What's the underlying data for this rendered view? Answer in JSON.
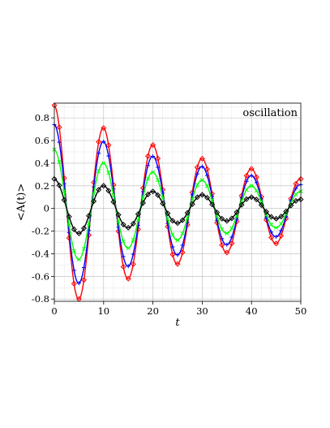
{
  "chart_data": {
    "type": "line",
    "legend": "oscillation",
    "legend_placement": "top-right",
    "xlabel": "t",
    "ylabel": "<A(t)>",
    "xlim": [
      0,
      50
    ],
    "ylim": [
      -0.82,
      0.93
    ],
    "grid": true,
    "x_ticks": [
      "0",
      "10",
      "20",
      "30",
      "40",
      "50"
    ],
    "y_ticks": [
      "-0.8",
      "-0.6",
      "-0.4",
      "-0.2",
      "0",
      "0.2",
      "0.4",
      "0.6",
      "0.8"
    ],
    "x_tick_values": [
      0,
      10,
      20,
      30,
      40,
      50
    ],
    "y_tick_values": [
      -0.8,
      -0.6,
      -0.4,
      -0.2,
      0,
      0.2,
      0.4,
      0.6,
      0.8
    ],
    "series": [
      {
        "color": "#ff0000",
        "marker": "diamond",
        "x": [
          0,
          5,
          10,
          15,
          20,
          25,
          30,
          35,
          40,
          45,
          50
        ],
        "y": [
          0.91,
          -0.8,
          0.71,
          -0.62,
          0.56,
          -0.49,
          0.44,
          -0.39,
          0.35,
          -0.31,
          0.26
        ]
      },
      {
        "color": "#0000ff",
        "marker": "plus",
        "x": [
          0,
          5,
          10,
          15,
          20,
          25,
          30,
          35,
          40,
          45,
          50
        ],
        "y": [
          0.74,
          -0.66,
          0.59,
          -0.51,
          0.46,
          -0.41,
          0.37,
          -0.32,
          0.29,
          -0.25,
          0.21
        ]
      },
      {
        "color": "#00ff00",
        "marker": "cross",
        "x": [
          0,
          5,
          10,
          15,
          20,
          25,
          30,
          35,
          40,
          45,
          50
        ],
        "y": [
          0.52,
          -0.45,
          0.4,
          -0.35,
          0.32,
          -0.28,
          0.25,
          -0.22,
          0.2,
          -0.17,
          0.15
        ]
      },
      {
        "color": "#000000",
        "marker": "diamond",
        "x": [
          0,
          5,
          10,
          15,
          20,
          25,
          30,
          35,
          40,
          45,
          50
        ],
        "y": [
          0.26,
          -0.22,
          0.2,
          -0.17,
          0.15,
          -0.13,
          0.12,
          -0.11,
          0.1,
          -0.09,
          0.08
        ]
      }
    ]
  }
}
